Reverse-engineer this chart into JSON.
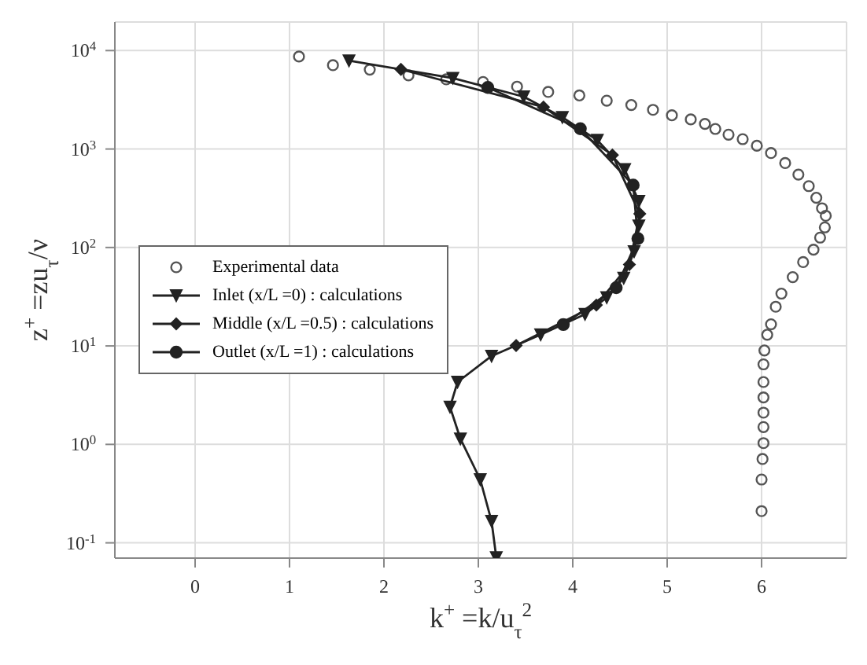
{
  "chart_data": {
    "type": "line",
    "xlabel": "k$^{+}$ =k/u$_{τ}$$^{2}$",
    "ylabel": "z$^{+}$ =zu$_{τ}$/ν",
    "log": "y",
    "grid": true,
    "legend": "left",
    "xlim": [
      -0.85,
      6.9
    ],
    "xticks": [
      0,
      1,
      2,
      3,
      4,
      5,
      6
    ],
    "ylim": [
      0.07,
      19500
    ],
    "yticks": [
      {
        "value": 0.1,
        "label": "10$^{-1}$"
      },
      {
        "value": 1,
        "label": "10$^{0}$"
      },
      {
        "value": 10,
        "label": "10$^{1}$"
      },
      {
        "value": 100,
        "label": "10$^{2}$"
      },
      {
        "value": 1000,
        "label": "10$^{3}$"
      },
      {
        "value": 10000,
        "label": "10$^{4}$"
      }
    ],
    "series": [
      {
        "name": "Experimental data",
        "type": "scatter",
        "marker": "circle",
        "color": "#555555",
        "x": [
          1.1,
          1.46,
          1.85,
          2.26,
          2.66,
          3.05,
          3.41,
          3.74,
          4.07,
          4.36,
          4.62,
          4.85,
          5.05,
          5.25,
          5.4,
          5.51,
          5.65,
          5.8,
          5.95,
          6.1,
          6.25,
          6.39,
          6.5,
          6.58,
          6.64,
          6.68,
          6.67,
          6.62,
          6.55,
          6.44,
          6.33,
          6.21,
          6.15,
          6.1,
          6.06,
          6.03,
          6.02,
          6.02,
          6.02,
          6.02,
          6.02,
          6.02,
          6.01,
          6.0,
          6.0
        ],
        "values": [
          8700,
          7100,
          6400,
          5600,
          5100,
          4800,
          4300,
          3800,
          3500,
          3100,
          2800,
          2500,
          2200,
          2000,
          1800,
          1600,
          1400,
          1260,
          1080,
          910,
          720,
          550,
          420,
          320,
          250,
          210,
          160,
          126,
          95,
          71,
          50,
          34,
          25,
          16.6,
          13,
          9,
          6.5,
          4.3,
          3,
          2.1,
          1.5,
          1.03,
          0.71,
          0.44,
          0.21
        ]
      },
      {
        "name": "Inlet (x/L =0) : calculations",
        "marker": "triangle",
        "line_style": "solid",
        "color": "#222222",
        "x": [
          1.63,
          2.73,
          3.48,
          3.89,
          4.26,
          4.55,
          4.7,
          4.7,
          4.65,
          4.54,
          4.36,
          4.13,
          3.66,
          3.14,
          2.78,
          2.7,
          2.81,
          3.02,
          3.14,
          3.19
        ],
        "values": [
          7900,
          5250,
          3400,
          2100,
          1230,
          620,
          295,
          166,
          91,
          49,
          31,
          21,
          13,
          7.9,
          4.3,
          2.4,
          1.14,
          0.44,
          0.166,
          0.071
        ]
      },
      {
        "name": "Middle (x/L =0.5) : calculations",
        "marker": "diamond",
        "line_style": "solid",
        "color": "#222222",
        "x": [
          2.18,
          3.69,
          4.42,
          4.71,
          4.6,
          4.25,
          3.4
        ],
        "values": [
          6440,
          2670,
          870,
          220,
          67,
          26,
          10.1
        ]
      },
      {
        "name": "Outlet (x/L =1) : calculations",
        "marker": "circle",
        "line_style": "solid",
        "color": "#222222",
        "x": [
          3.1,
          4.08,
          4.64,
          4.69,
          4.46,
          3.9
        ],
        "values": [
          4220,
          1610,
          430,
          123,
          39,
          16.5
        ]
      }
    ]
  }
}
